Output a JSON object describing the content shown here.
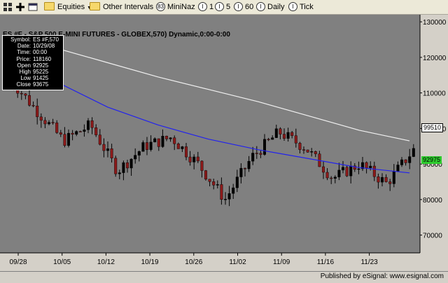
{
  "toolbar": {
    "items": [
      {
        "name": "equities-menu",
        "label": "Equities"
      },
      {
        "name": "other-intervals-menu",
        "label": "Other Intervals"
      },
      {
        "name": "interval-mininaz",
        "label": "MiniNaz",
        "badge": "83"
      },
      {
        "name": "interval-1",
        "label": "1",
        "badge": "I"
      },
      {
        "name": "interval-5",
        "label": "5",
        "badge": "I"
      },
      {
        "name": "interval-60",
        "label": "60",
        "badge": "I"
      },
      {
        "name": "interval-daily",
        "label": "Daily",
        "badge": "I"
      },
      {
        "name": "interval-tick",
        "label": "Tick",
        "badge": "I"
      }
    ]
  },
  "chart": {
    "title": "ES #F - S&P 500 E-MINI FUTURES - GLOBEX,570) Dynamic,0:00-0:00",
    "colors": {
      "background": "#808080",
      "candle_up": "#000000",
      "candle_down": "#8b1a1a",
      "ma_fast": "#2222ee",
      "ma_slow": "#f0f0f0",
      "axis_bg": "#d4d0c8"
    },
    "price_tags": {
      "slow_ma_value": "99510",
      "last_value": "92975"
    }
  },
  "info_box": [
    {
      "k": "Symbol:",
      "v": "ES #F,570"
    },
    {
      "k": "Date:",
      "v": "10/29/08"
    },
    {
      "k": "Time:",
      "v": "00:00"
    },
    {
      "k": "Price:",
      "v": "118160"
    },
    {
      "k": "Open",
      "v": "92925"
    },
    {
      "k": "High",
      "v": "95225"
    },
    {
      "k": "Low",
      "v": "91425"
    },
    {
      "k": "Close",
      "v": "93675"
    }
  ],
  "footer": {
    "text": "Published by eSignal: www.esignal.com"
  },
  "chart_data": {
    "type": "line",
    "x": [
      "09/28",
      "10/05",
      "10/12",
      "10/19",
      "10/26",
      "11/02",
      "11/09",
      "11/16",
      "11/23"
    ],
    "y_ticks": [
      70000,
      80000,
      90000,
      100000,
      110000,
      120000,
      130000
    ],
    "ylim": [
      65000,
      132000
    ],
    "series": [
      {
        "values_approx": {
          "slow_ma": [
            126000,
            122500,
            118500,
            114500,
            111000,
            107500,
            103500,
            99500,
            96500
          ]
        }
      },
      {
        "values_approx": {
          "fast_ma": [
            120000,
            113000,
            106000,
            101000,
            97000,
            94000,
            91500,
            89000,
            87500
          ]
        }
      }
    ],
    "close_approx": [
      114000,
      105000,
      96500,
      101000,
      88000,
      95000,
      97500,
      90000,
      80000,
      92000,
      99000,
      94500,
      86000,
      90000,
      84500,
      94000
    ]
  }
}
